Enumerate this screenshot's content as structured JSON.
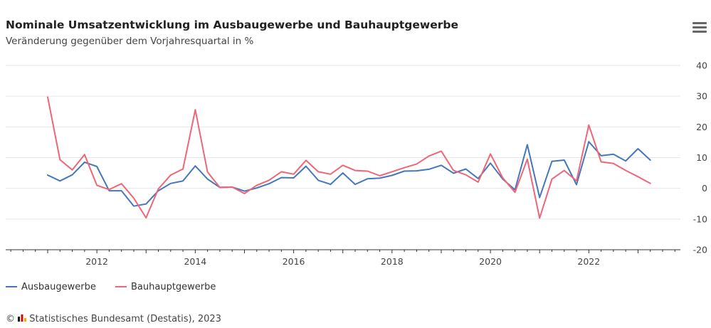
{
  "header": {
    "title": "Nominale Umsatzentwicklung im Ausbaugewerbe und Bauhauptgewerbe",
    "subtitle": "Veränderung gegenüber dem Vorjahresquartal in %",
    "menu_icon": "hamburger-menu-icon"
  },
  "credits": {
    "text": "Statistisches Bundesamt (Destatis), 2023",
    "icon": "destatis-logo-icon"
  },
  "colors": {
    "ausbau": "#4477bb",
    "bauhaupt": "#ee6677",
    "grid": "#e6e6e6",
    "axis": "#333333"
  },
  "chart_data": {
    "type": "line",
    "title": "Nominale Umsatzentwicklung im Ausbaugewerbe und Bauhauptgewerbe",
    "subtitle": "Veränderung gegenüber dem Vorjahresquartal in %",
    "xlabel": "",
    "ylabel": "",
    "x_tick_labels": [
      "2012",
      "2014",
      "2016",
      "2018",
      "2020",
      "2022"
    ],
    "y_tick_labels": [
      "40",
      "30",
      "20",
      "10",
      "0",
      "-10",
      "-20"
    ],
    "ylim": [
      -20,
      40
    ],
    "y_axis_side": "right",
    "grid": true,
    "legend_position": "bottom-left",
    "x": [
      "2011-Q1",
      "2011-Q2",
      "2011-Q3",
      "2011-Q4",
      "2012-Q1",
      "2012-Q2",
      "2012-Q3",
      "2012-Q4",
      "2013-Q1",
      "2013-Q2",
      "2013-Q3",
      "2013-Q4",
      "2014-Q1",
      "2014-Q2",
      "2014-Q3",
      "2014-Q4",
      "2015-Q1",
      "2015-Q2",
      "2015-Q3",
      "2015-Q4",
      "2016-Q1",
      "2016-Q2",
      "2016-Q3",
      "2016-Q4",
      "2017-Q1",
      "2017-Q2",
      "2017-Q3",
      "2017-Q4",
      "2018-Q1",
      "2018-Q2",
      "2018-Q3",
      "2018-Q4",
      "2019-Q1",
      "2019-Q2",
      "2019-Q3",
      "2019-Q4",
      "2020-Q1",
      "2020-Q2",
      "2020-Q3",
      "2020-Q4",
      "2021-Q1",
      "2021-Q2",
      "2021-Q3",
      "2021-Q4",
      "2022-Q1",
      "2022-Q2",
      "2022-Q3",
      "2022-Q4",
      "2023-Q1",
      "2023-Q2"
    ],
    "series": [
      {
        "name": "Ausbaugewerbe",
        "color": "#4477bb",
        "values": [
          4.3,
          2.4,
          4.4,
          8.5,
          7.1,
          -0.8,
          -0.8,
          -5.8,
          -5.1,
          -0.8,
          1.6,
          2.4,
          7.3,
          3.0,
          0.3,
          0.4,
          -0.9,
          0.1,
          1.5,
          3.5,
          3.4,
          7.2,
          2.6,
          1.3,
          5.0,
          1.3,
          3.1,
          3.3,
          4.2,
          5.6,
          5.7,
          6.2,
          7.5,
          4.9,
          6.3,
          3.2,
          8.2,
          3.0,
          -0.5,
          14.2,
          -3.0,
          8.8,
          9.2,
          1.2,
          15.2,
          10.6,
          11.1,
          8.9,
          12.9,
          9.2
        ]
      },
      {
        "name": "Bauhauptgewerbe",
        "color": "#ee6677",
        "values": [
          29.7,
          9.3,
          6.0,
          11.0,
          1.0,
          -0.4,
          1.5,
          -3.2,
          -9.6,
          -0.2,
          4.3,
          6.3,
          25.6,
          5.3,
          0.3,
          0.4,
          -1.7,
          1.0,
          2.6,
          5.4,
          4.6,
          9.1,
          5.4,
          4.6,
          7.5,
          5.8,
          5.6,
          4.1,
          5.4,
          6.7,
          7.9,
          10.5,
          12.1,
          5.8,
          4.4,
          2.0,
          11.2,
          3.4,
          -1.3,
          9.5,
          -9.7,
          3.0,
          5.8,
          2.4,
          20.6,
          8.6,
          8.1,
          5.8,
          3.8,
          1.6
        ]
      }
    ]
  }
}
